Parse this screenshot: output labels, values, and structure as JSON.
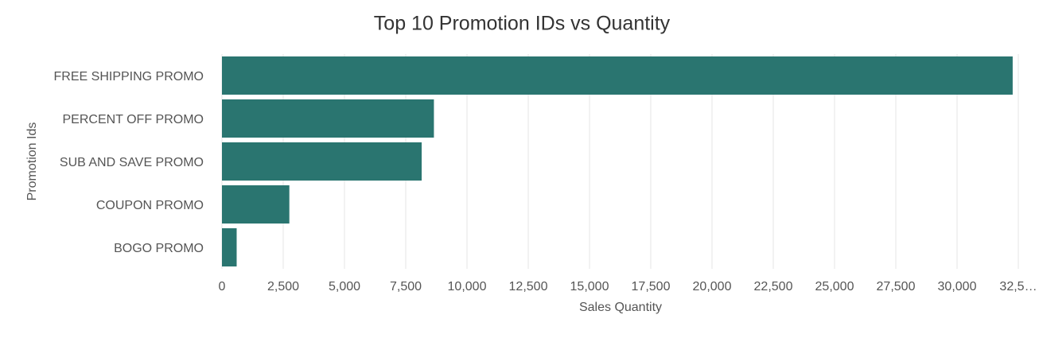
{
  "chart_data": {
    "type": "bar",
    "orientation": "horizontal",
    "title": "Top 10 Promotion IDs vs Quantity",
    "x_label": "Sales Quantity",
    "y_label": "Promotion Ids",
    "categories": [
      "FREE SHIPPING PROMO",
      "PERCENT OFF PROMO",
      "SUB AND SAVE PROMO",
      "COUPON PROMO",
      "BOGO PROMO"
    ],
    "values": [
      32270,
      8650,
      8150,
      2750,
      600
    ],
    "color": "#2a7570",
    "xlim": [
      0,
      32500
    ],
    "xticks": [
      0,
      {
        "value": 2500,
        "label": "2,500"
      },
      {
        "value": 5000,
        "label": "5,000"
      },
      {
        "value": 7500,
        "label": "7,500"
      },
      {
        "value": 10000,
        "label": "10,000"
      },
      {
        "value": 12500,
        "label": "12,500"
      },
      {
        "value": 15000,
        "label": "15,000"
      },
      {
        "value": 17500,
        "label": "17,500"
      },
      {
        "value": 20000,
        "label": "20,000"
      },
      {
        "value": 22500,
        "label": "22,500"
      },
      {
        "value": 25000,
        "label": "25,000"
      },
      {
        "value": 27500,
        "label": "27,500"
      },
      {
        "value": 30000,
        "label": "30,000"
      },
      {
        "value": 32500,
        "label": "32,5…"
      }
    ],
    "grid": true
  }
}
